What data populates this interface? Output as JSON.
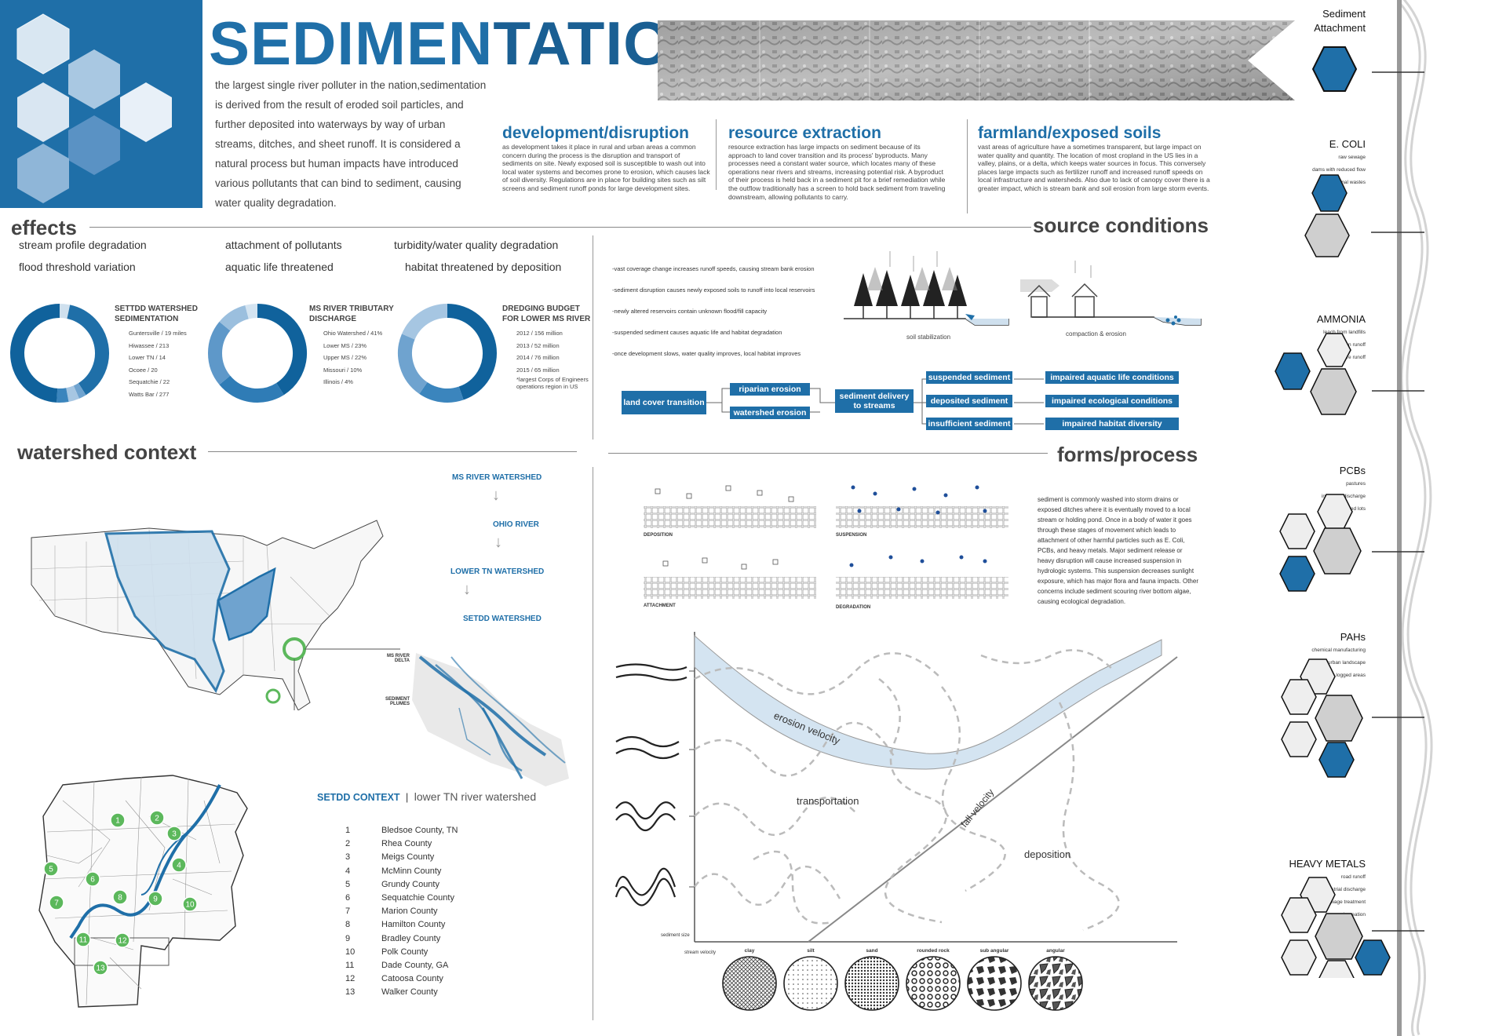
{
  "title": {
    "part1": "SEDIMEN",
    "part2": "TATION"
  },
  "intro": "the largest single river polluter in the nation,sedimentation is derived from the result of eroded soil particles, and further deposited into waterways by way of urban streams, ditches, and sheet runoff. It is considered a natural process but human impacts have introduced various pollutants that can bind to sediment, causing water quality degradation.",
  "sources": [
    {
      "heading": "development/disruption",
      "body": "as development takes it place in rural and urban areas a common concern during the process is the disruption and transport of sediments on site. Newly exposed soil is susceptible to wash out into local water systems and becomes prone to erosion, which causes lack of soil diversity. Regulations are in place for building sites such as silt screens and sediment runoff ponds for large development sites."
    },
    {
      "heading": "resource extraction",
      "body": "resource extraction has large impacts on sediment because of its approach to land cover transition and its process' byproducts. Many processes need a constant water source, which locates many of these operations near rivers and streams, increasing potential risk. A byproduct of their process is held back in a sediment pit for a brief remediation while the outflow traditionally has a screen to hold back sediment from traveling downstream, allowing pollutants to carry."
    },
    {
      "heading": "farmland/exposed soils",
      "body": "vast areas of agriculture have a sometimes transparent, but large impact on water quality and quantity. The location of most cropland in the US lies in a valley, plains, or a delta, which keeps water sources in focus. This conversely places large impacts such as fertilizer runoff and increased runoff speeds on local infrastructure and watersheds. Also due to lack of canopy cover there is a greater impact, which is stream bank and soil erosion from large storm events."
    }
  ],
  "effects": {
    "heading": "effects",
    "items": [
      "stream profile degradation",
      "flood threshold variation",
      "attachment of pollutants",
      "aquatic life threatened",
      "turbidity/water quality degradation",
      "habitat threatened by deposition"
    ]
  },
  "donuts": [
    {
      "title": "SETTDD WATERSHED SEDIMENTATION",
      "labels": [
        "Guntersville / 19 miles",
        "Hiwassee / 213",
        "Lower TN / 14",
        "Ocoee / 20",
        "Sequatchie / 22",
        "Watts Bar / 277"
      ],
      "values": [
        19,
        213,
        14,
        20,
        22,
        277
      ],
      "colors": [
        "#cfe0ee",
        "#1f6fa8",
        "#6fa3cf",
        "#a6c6e2",
        "#3b85bd",
        "#10629c"
      ]
    },
    {
      "title": "MS RIVER TRIBUTARY DISCHARGE",
      "labels": [
        "Ohio Watershed / 41%",
        "Lower MS / 23%",
        "Upper MS / 22%",
        "Missouri / 10%",
        "Illinois / 4%"
      ],
      "values": [
        41,
        23,
        22,
        10,
        4
      ],
      "colors": [
        "#10629c",
        "#2f7cb6",
        "#5e98c9",
        "#9bbfde",
        "#d4e4f1"
      ]
    },
    {
      "title": "DREDGING BUDGET FOR LOWER MS RIVER",
      "labels": [
        "2012 / 156 million",
        "2013 / 52 million",
        "2014 / 76 million",
        "2015 / 65 million"
      ],
      "values": [
        156,
        52,
        76,
        65
      ],
      "colors": [
        "#10629c",
        "#3b85bd",
        "#6fa3cf",
        "#a6c6e2"
      ],
      "note": "*largest Corps of Engineers operations region in US"
    }
  ],
  "source_conditions": {
    "heading": "source conditions",
    "items": [
      "-vast coverage change increases runoff speeds, causing stream bank erosion",
      "-sediment disruption causes newly exposed soils to runoff into local reservoirs",
      "-newly altered reservoirs contain unknown flood/fill capacity",
      "-suspended sediment causes aquatic life and habitat degradation",
      "-once development slows, water quality improves, local habitat improves"
    ],
    "diagram_labels": [
      "soil stabilization",
      "compaction & erosion"
    ]
  },
  "flow": {
    "root": "land cover transition",
    "erosion": [
      "riparian erosion",
      "watershed erosion"
    ],
    "delivery": "sediment delivery to streams",
    "states": [
      "suspended sediment",
      "deposited sediment",
      "insufficient sediment"
    ],
    "impacts": [
      "impaired aquatic life conditions",
      "impaired ecological conditions",
      "impaired habitat diversity"
    ]
  },
  "watershed": {
    "heading": "watershed context",
    "chain": [
      "MS RIVER WATERSHED",
      "OHIO RIVER",
      "LOWER TN WATERSHED",
      "SETDD WATERSHED"
    ],
    "delta_labels": [
      "MS RIVER DELTA",
      "SEDIMENT PLUMES"
    ],
    "context_title": "SETDD CONTEXT",
    "context_sub": "lower TN river watershed",
    "counties": [
      "Bledsoe County, TN",
      "Rhea County",
      "Meigs County",
      "McMinn County",
      "Grundy County",
      "Sequatchie County",
      "Marion County",
      "Hamilton County",
      "Bradley County",
      "Polk County",
      "Dade County, GA",
      "Catoosa County",
      "Walker County"
    ]
  },
  "forms": {
    "heading": "forms/process",
    "labels": [
      "DEPOSITION",
      "SUSPENSION",
      "ATTACHMENT",
      "DEGRADATION"
    ],
    "text": "sediment is commonly washed into storm drains or exposed ditches where it is eventually moved to a local stream or holding pond. Once in a body of water it goes through these stages of movement which leads to attachment of other harmful particles such as E. Coli, PCBs, and heavy metals. Major sediment release or heavy disruption will cause increased suspension in hydrologic systems. This suspension decreases sunlight exposure, which has major flora and fauna impacts. Other concerns include sediment scouring river bottom algae, causing ecological degradation."
  },
  "graph": {
    "zones": [
      "erosion velocity",
      "transportation",
      "fall velocity",
      "deposition"
    ],
    "axis_y": "stream velocity",
    "axis_x": "sediment size",
    "sizes": [
      "clay",
      "silt",
      "sand",
      "rounded rock",
      "sub angular",
      "angular"
    ]
  },
  "sidebar": [
    {
      "title": "Sediment Attachment",
      "items": []
    },
    {
      "title": "E. COLI",
      "items": [
        "raw sewage",
        "dams with reduced flow",
        "animal wastes"
      ]
    },
    {
      "title": "AMMONIA",
      "items": [
        "leach from landfills",
        "irrigation runoff",
        "agriculture runoff"
      ]
    },
    {
      "title": "PCBs",
      "items": [
        "pastures",
        "industrial discharge",
        "livestock feed lots"
      ]
    },
    {
      "title": "PAHs",
      "items": [
        "chemical manufacturing",
        "urban landscape",
        "logged areas"
      ]
    },
    {
      "title": "HEAVY METALS",
      "items": [
        "road runoff",
        "industrial discharge",
        "sewage treatment",
        "reservoir creation"
      ]
    }
  ],
  "colors": {
    "accent": "#1f6fa8",
    "dark": "#10629c",
    "light": "#d4e4f1",
    "grey": "#cfcfcf"
  }
}
